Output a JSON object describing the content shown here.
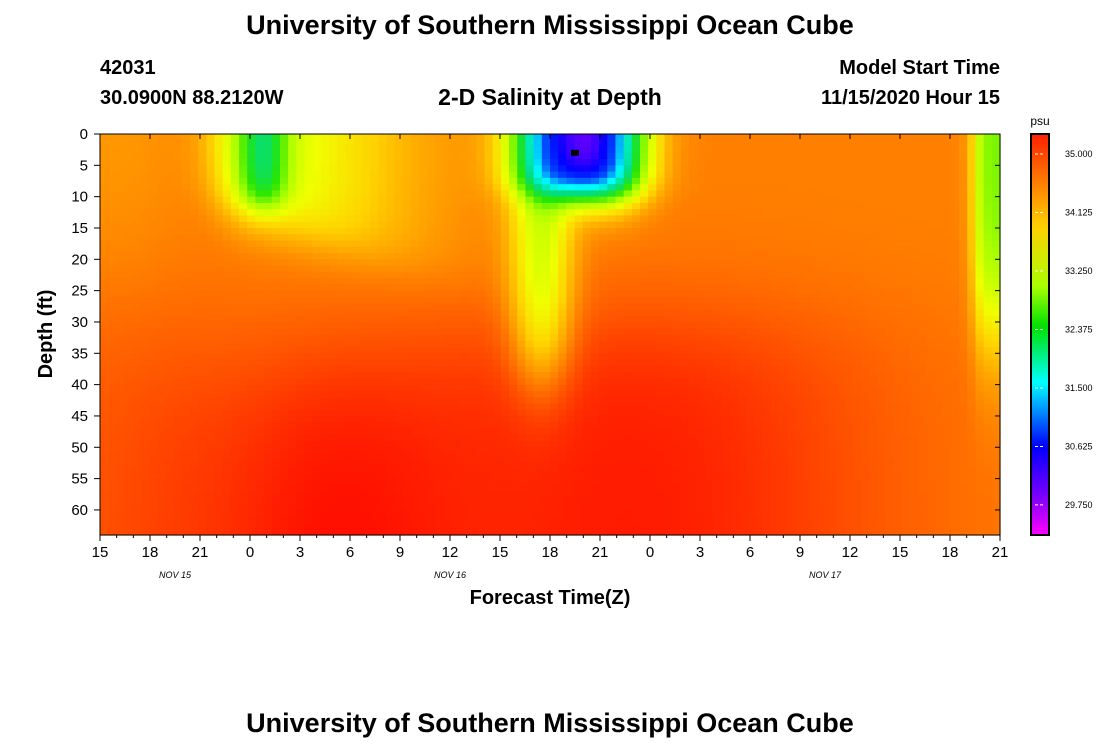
{
  "page": {
    "title_top": "University of Southern Mississippi Ocean Cube",
    "title_bottom": "University of Southern Mississippi Ocean Cube",
    "station_id": "42031",
    "station_coords": "30.0900N 88.2120W",
    "model_label": "Model Start Time",
    "model_time": "11/15/2020 Hour 15"
  },
  "chart_data": {
    "type": "heatmap",
    "title": "2-D Salinity at Depth",
    "xlabel": "Forecast Time(Z)",
    "ylabel": "Depth (ft)",
    "x_range_hours": [
      0,
      54
    ],
    "y_range_ft": [
      0,
      64
    ],
    "x_tick_labels": [
      "15",
      "18",
      "21",
      "0",
      "3",
      "6",
      "9",
      "12",
      "15",
      "18",
      "21",
      "0",
      "3",
      "6",
      "9",
      "12",
      "15",
      "18",
      "21"
    ],
    "y_ticks": [
      0,
      5,
      10,
      15,
      20,
      25,
      30,
      35,
      40,
      45,
      50,
      55,
      60
    ],
    "date_labels": [
      {
        "label": "NOV 15",
        "hour": 4.5
      },
      {
        "label": "NOV 16",
        "hour": 21
      },
      {
        "label": "NOV 17",
        "hour": 43.5
      }
    ],
    "colorbar": {
      "unit": "psu",
      "range": [
        29.3,
        35.3
      ],
      "tick_labels": [
        "35.000",
        "34.125",
        "33.250",
        "32.375",
        "31.500",
        "30.625",
        "29.750"
      ],
      "tick_values": [
        35.0,
        34.125,
        33.25,
        32.375,
        31.5,
        30.625,
        29.75
      ]
    },
    "salinity_features": {
      "background_psu": 34.7,
      "deep_max_psu": 35.2,
      "fresh_core_psu": 29.5,
      "fresh_core_hour": 28.5,
      "fresh_core_depth_ft": 3
    }
  }
}
